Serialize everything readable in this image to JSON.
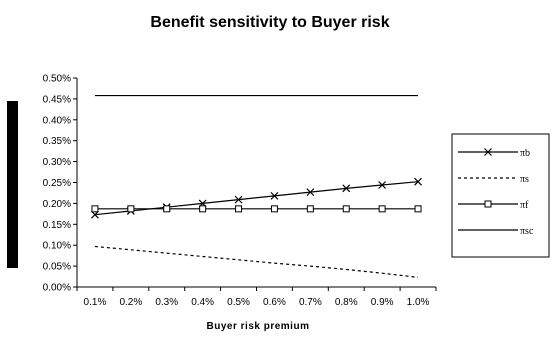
{
  "chart_data": {
    "type": "line",
    "title": "Benefit sensitivity to Buyer risk",
    "xlabel": "Buyer risk premium",
    "ylabel": "",
    "categories": [
      "0.1%",
      "0.2%",
      "0.3%",
      "0.4%",
      "0.5%",
      "0.6%",
      "0.7%",
      "0.8%",
      "0.9%",
      "1.0%"
    ],
    "y_ticks": [
      "0.00%",
      "0.05%",
      "0.10%",
      "0.15%",
      "0.20%",
      "0.25%",
      "0.30%",
      "0.35%",
      "0.40%",
      "0.45%",
      "0.50%"
    ],
    "ylim": [
      0,
      0.5
    ],
    "grid": false,
    "legend_position": "right",
    "series": [
      {
        "name": "πb",
        "marker": "x",
        "dash": "solid",
        "values": [
          0.173,
          0.182,
          0.191,
          0.2,
          0.209,
          0.218,
          0.227,
          0.236,
          0.244,
          0.252
        ]
      },
      {
        "name": "πs",
        "marker": "none",
        "dash": "dashed",
        "values": [
          0.097,
          0.089,
          0.081,
          0.073,
          0.065,
          0.057,
          0.05,
          0.042,
          0.033,
          0.023
        ]
      },
      {
        "name": "πf",
        "marker": "square",
        "dash": "solid",
        "values": [
          0.187,
          0.187,
          0.187,
          0.187,
          0.187,
          0.187,
          0.187,
          0.187,
          0.187,
          0.187
        ]
      },
      {
        "name": "πsc",
        "marker": "none",
        "dash": "solid",
        "values": [
          0.458,
          0.458,
          0.458,
          0.458,
          0.458,
          0.458,
          0.458,
          0.458,
          0.458,
          0.458
        ]
      }
    ]
  }
}
